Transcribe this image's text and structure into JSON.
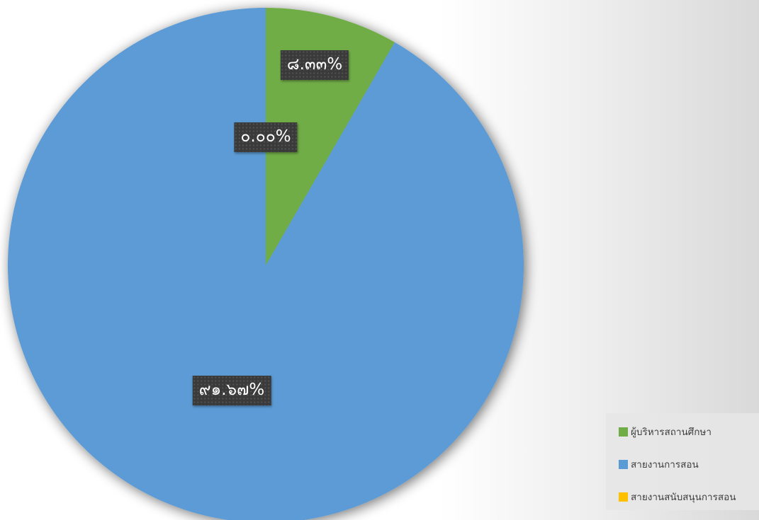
{
  "chart_data": {
    "type": "pie",
    "categories": [
      "ผู้บริหารสถานศึกษา",
      "สายงานการสอน",
      "สายงานสนับสนุนการสอน"
    ],
    "values": [
      8.33,
      91.67,
      0.0
    ],
    "data_labels": [
      "๘.๓๓%",
      "๙๑.๖๗%",
      "๐.๐๐%"
    ],
    "colors": [
      "#70AD47",
      "#5B9BD5",
      "#FFC000"
    ],
    "start_angle": "12 o'clock",
    "direction": "clockwise",
    "legend_position": "bottom-right",
    "title": ""
  },
  "legend": {
    "items": [
      {
        "label": "ผู้บริหารสถานศึกษา",
        "color": "#70AD47"
      },
      {
        "label": "สายงานการสอน",
        "color": "#5B9BD5"
      },
      {
        "label": "สายงานสนับสนุนการสอน",
        "color": "#FFC000"
      }
    ]
  }
}
